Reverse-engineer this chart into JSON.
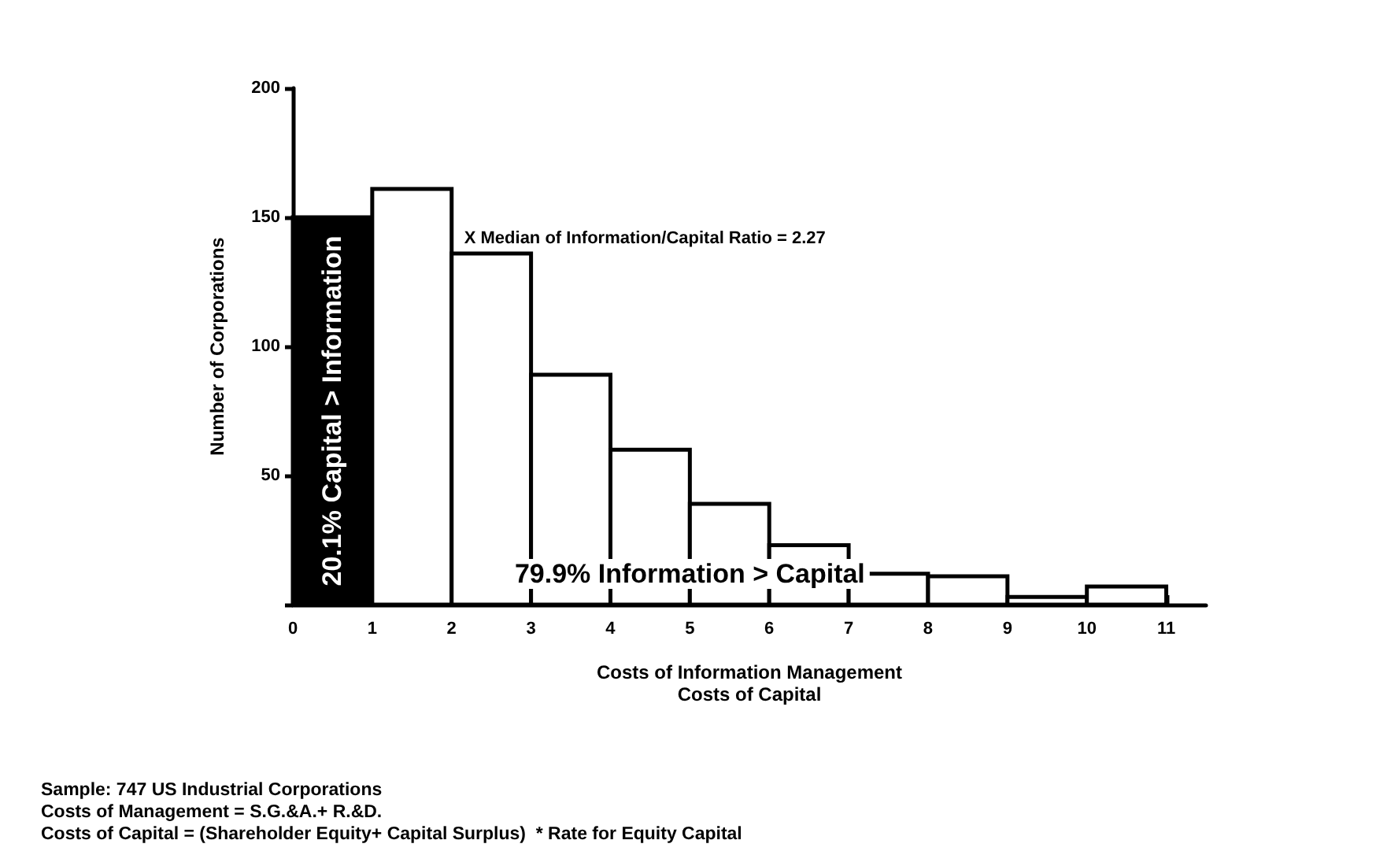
{
  "chart_data": {
    "type": "histogram",
    "bins": [
      0,
      1,
      2,
      3,
      4,
      5,
      6,
      7,
      8,
      9,
      10,
      11
    ],
    "values": [
      150,
      161,
      136,
      89,
      60,
      39,
      23,
      12,
      11,
      3,
      7
    ],
    "colors": [
      "#000000",
      "#ffffff",
      "#ffffff",
      "#ffffff",
      "#ffffff",
      "#ffffff",
      "#ffffff",
      "#ffffff",
      "#ffffff",
      "#ffffff",
      "#ffffff"
    ],
    "xlabel": "Costs of Information Management\nCosts of Capital",
    "ylabel": "Number of Corporations",
    "xlim": [
      0,
      11.5
    ],
    "xticks": [
      0,
      1,
      2,
      3,
      4,
      5,
      6,
      7,
      8,
      9,
      10,
      11
    ],
    "ylim": [
      0,
      200
    ],
    "yticks": [
      {
        "value": 0,
        "label": null
      },
      50,
      100,
      150,
      200
    ],
    "grid": false,
    "annotations": [
      "20.1% Capital > Information",
      "79.9% Information > Capital",
      "X Median of Information/Capital Ratio = 2.27",
      "Sample: 747 US Industrial Corporations",
      "Costs of Management = S.G.&A.+ R.&D.",
      "Costs of Capital = (Shareholder Equity+ Capital Surplus)  * Rate for Equity Capital"
    ]
  }
}
